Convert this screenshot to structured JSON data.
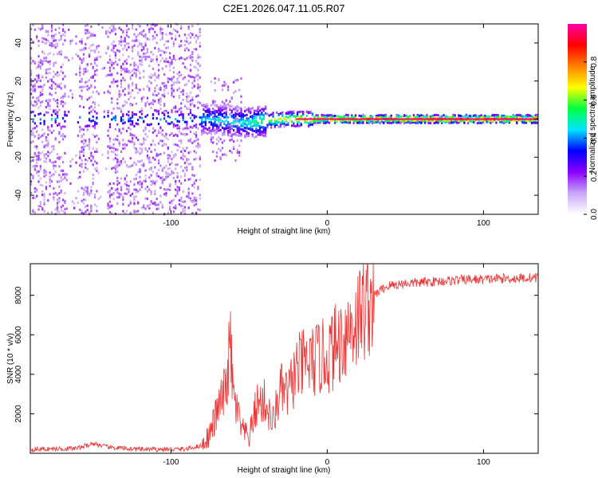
{
  "title": "C2E1.2026.047.11.05.R07",
  "chart_data": [
    {
      "type": "heatmap",
      "name": "spectrogram",
      "xlabel": "Height of straight line (km)",
      "ylabel": "Frequency (Hz)",
      "xlim": [
        -190,
        135
      ],
      "ylim": [
        -50,
        50
      ],
      "xticks": [
        -100,
        0,
        100
      ],
      "xtick_labels": [
        "-100",
        "0",
        "100"
      ],
      "yticks": [
        -40,
        -20,
        0,
        20,
        40
      ],
      "ytick_labels": [
        "-40",
        "-20",
        "0",
        "20",
        "40"
      ],
      "colorbar": {
        "label": "Normalized spectral amplitude",
        "range": [
          0,
          1
        ],
        "ticks": [
          0.0,
          0.2,
          0.4,
          0.6,
          0.8
        ],
        "tick_labels": [
          "0.0",
          "0.2",
          "0.4",
          "0.6",
          "0.8"
        ],
        "colors": [
          "#ffffff",
          "#c9a6f7",
          "#8a00ff",
          "#0000ff",
          "#00e5ff",
          "#00ff40",
          "#ffff00",
          "#ff8000",
          "#ff0000",
          "#ff00aa"
        ]
      },
      "description_points": [
        {
          "x": -180,
          "y": 0,
          "value": 0.25
        },
        {
          "x": -155,
          "y": 0,
          "value": 0.35
        },
        {
          "x": -75,
          "y": 0,
          "value": 0.45
        },
        {
          "x": -50,
          "y": -2,
          "value": 0.5
        },
        {
          "x": -30,
          "y": 0,
          "value": 0.7
        },
        {
          "x": 0,
          "y": 0,
          "value": 0.85
        },
        {
          "x": 50,
          "y": 0,
          "value": 0.9
        },
        {
          "x": 100,
          "y": 0,
          "value": 0.9
        },
        {
          "x": 130,
          "y": 0,
          "value": 0.9
        }
      ]
    },
    {
      "type": "line",
      "name": "snr",
      "xlabel": "Height of straight line (km)",
      "ylabel": "SNR (10 * v/v)",
      "xlim": [
        -190,
        135
      ],
      "ylim": [
        0,
        9600
      ],
      "xticks": [
        -100,
        0,
        100
      ],
      "xtick_labels": [
        "-100",
        "0",
        "100"
      ],
      "yticks": [
        2000,
        4000,
        6000,
        8000
      ],
      "ytick_labels": [
        "2000",
        "4000",
        "6000",
        "8000"
      ],
      "color": "#ee3333",
      "x": [
        -190,
        -160,
        -150,
        -140,
        -120,
        -100,
        -90,
        -80,
        -75,
        -70,
        -65,
        -62,
        -60,
        -57,
        -55,
        -50,
        -45,
        -40,
        -35,
        -30,
        -25,
        -20,
        -15,
        -10,
        -5,
        0,
        5,
        10,
        15,
        20,
        25,
        30,
        35,
        40,
        50,
        60,
        70,
        80,
        90,
        100,
        110,
        120,
        135
      ],
      "y": [
        200,
        250,
        500,
        300,
        200,
        200,
        220,
        400,
        1000,
        2200,
        3200,
        5500,
        2800,
        2000,
        1200,
        800,
        2500,
        2600,
        1500,
        3200,
        3000,
        4200,
        4500,
        4600,
        4800,
        4900,
        5400,
        5900,
        6400,
        6900,
        7600,
        8000,
        8300,
        8500,
        8600,
        8650,
        8700,
        8750,
        8800,
        8800,
        8850,
        8850,
        8900
      ]
    }
  ]
}
